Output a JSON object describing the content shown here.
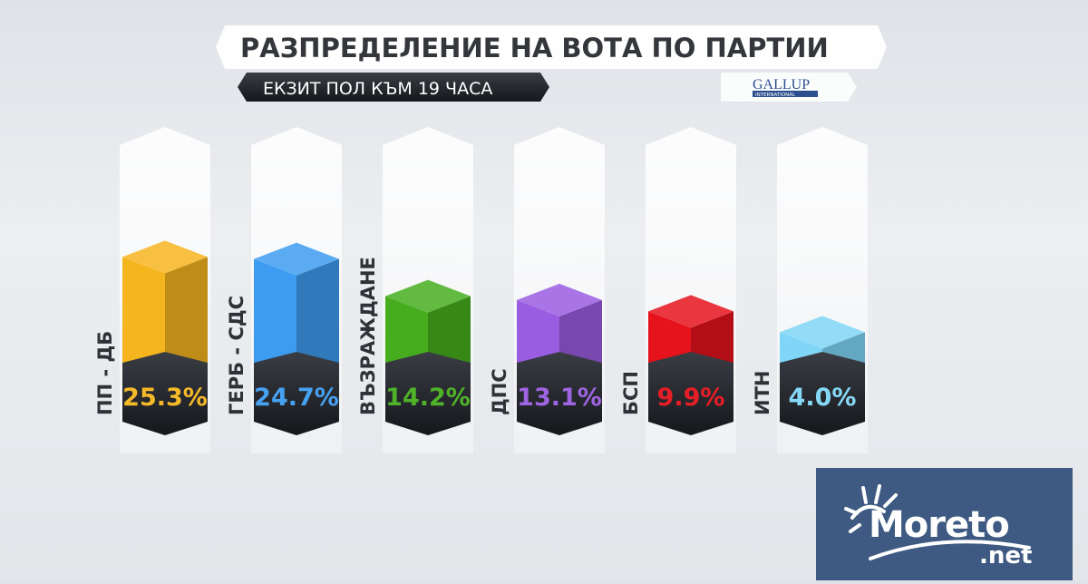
{
  "header": {
    "title": "РАЗПРЕДЕЛЕНИЕ НА ВОТА ПО ПАРТИИ",
    "subtitle": "ЕКЗИТ ПОЛ КЪМ 19 ЧАСА",
    "source_logo": "GALLUP",
    "source_logo_sub": "INTERNATIONAL"
  },
  "watermark": {
    "text": "Moreto",
    "suffix": ".net",
    "background": "#3e5a82"
  },
  "chart_data": {
    "type": "bar",
    "style": "3d-cube",
    "categories": [
      "ПП - ДБ",
      "ГЕРБ - СДС",
      "ВЪЗРАЖДАНЕ",
      "ДПС",
      "БСП",
      "ИТН"
    ],
    "values": [
      25.3,
      24.7,
      14.2,
      13.1,
      9.9,
      4.0
    ],
    "value_labels": [
      "25.3%",
      "24.7%",
      "14.2%",
      "13.1%",
      "9.9%",
      "4.0%"
    ],
    "colors": [
      "#f5b51e",
      "#3d9cf0",
      "#46ae1e",
      "#9a5ce0",
      "#e6121c",
      "#7fd6f6"
    ],
    "unit": "%",
    "grid": false,
    "legend": "none"
  }
}
